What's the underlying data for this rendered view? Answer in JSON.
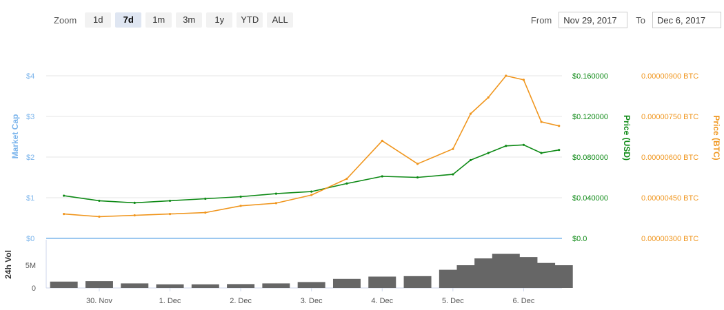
{
  "toolbar": {
    "zoom_label": "Zoom",
    "buttons": [
      "1d",
      "7d",
      "1m",
      "3m",
      "1y",
      "YTD",
      "ALL"
    ],
    "active": "7d"
  },
  "range": {
    "from_label": "From",
    "from_value": "Nov 29, 2017",
    "to_label": "To",
    "to_value": "Dec 6, 2017"
  },
  "colors": {
    "market_cap": "#7cb5ec",
    "price_usd": "#0e8a16",
    "price_btc": "#f0961e",
    "volume": "#666666"
  },
  "chart_data": {
    "type": "line",
    "x_ticks": [
      "30. Nov",
      "1. Dec",
      "2. Dec",
      "3. Dec",
      "4. Dec",
      "5. Dec",
      "6. Dec"
    ],
    "axes": {
      "market_cap": {
        "title": "Market Cap",
        "ticks": [
          "$0",
          "$1",
          "$2",
          "$3",
          "$4"
        ],
        "ylim": [
          0,
          4
        ]
      },
      "price_usd": {
        "title": "Price (USD)",
        "ticks": [
          "$0.0",
          "$0.040000",
          "$0.080000",
          "$0.120000",
          "$0.160000"
        ],
        "ylim": [
          0,
          0.16
        ]
      },
      "price_btc": {
        "title": "Price (BTC)",
        "ticks": [
          "0.00000300 BTC",
          "0.00000450 BTC",
          "0.00000600 BTC",
          "0.00000750 BTC",
          "0.00000900 BTC"
        ],
        "ylim": [
          3e-06,
          9e-06
        ]
      },
      "volume": {
        "title": "24h Vol",
        "ticks": [
          "0",
          "5M"
        ],
        "ylim": [
          0,
          10000000
        ]
      }
    },
    "x": [
      "2017-11-29 12:00",
      "2017-11-30 00:00",
      "2017-11-30 12:00",
      "2017-12-01 00:00",
      "2017-12-01 12:00",
      "2017-12-02 00:00",
      "2017-12-02 12:00",
      "2017-12-03 00:00",
      "2017-12-03 12:00",
      "2017-12-04 00:00",
      "2017-12-04 12:00",
      "2017-12-05 00:00",
      "2017-12-05 06:00",
      "2017-12-05 12:00",
      "2017-12-05 18:00",
      "2017-12-06 00:00",
      "2017-12-06 06:00",
      "2017-12-06 12:00"
    ],
    "series": [
      {
        "name": "Market Cap",
        "values": [
          0,
          0,
          0,
          0,
          0,
          0,
          0,
          0,
          0,
          0,
          0,
          0,
          0,
          0,
          0,
          0,
          0,
          0
        ]
      },
      {
        "name": "Price (USD)",
        "values": [
          0.042,
          0.037,
          0.035,
          0.037,
          0.039,
          0.041,
          0.044,
          0.046,
          0.054,
          0.061,
          0.06,
          0.063,
          0.077,
          0.084,
          0.091,
          0.092,
          0.084,
          0.087
        ]
      },
      {
        "name": "Price (BTC)",
        "values": [
          3.9e-06,
          3.8e-06,
          3.85e-06,
          3.9e-06,
          3.95e-06,
          4.2e-06,
          4.3e-06,
          4.6e-06,
          5.2e-06,
          6.6e-06,
          5.75e-06,
          6.3e-06,
          7.6e-06,
          8.2e-06,
          9e-06,
          8.85e-06,
          7.3e-06,
          7.15e-06
        ]
      },
      {
        "name": "24h Vol",
        "values": [
          1400000,
          1500000,
          1000000,
          800000,
          800000,
          850000,
          1000000,
          1300000,
          2000000,
          2500000,
          2600000,
          4000000,
          5000000,
          6500000,
          7500000,
          6800000,
          5500000,
          5000000
        ]
      }
    ],
    "grid": true
  }
}
